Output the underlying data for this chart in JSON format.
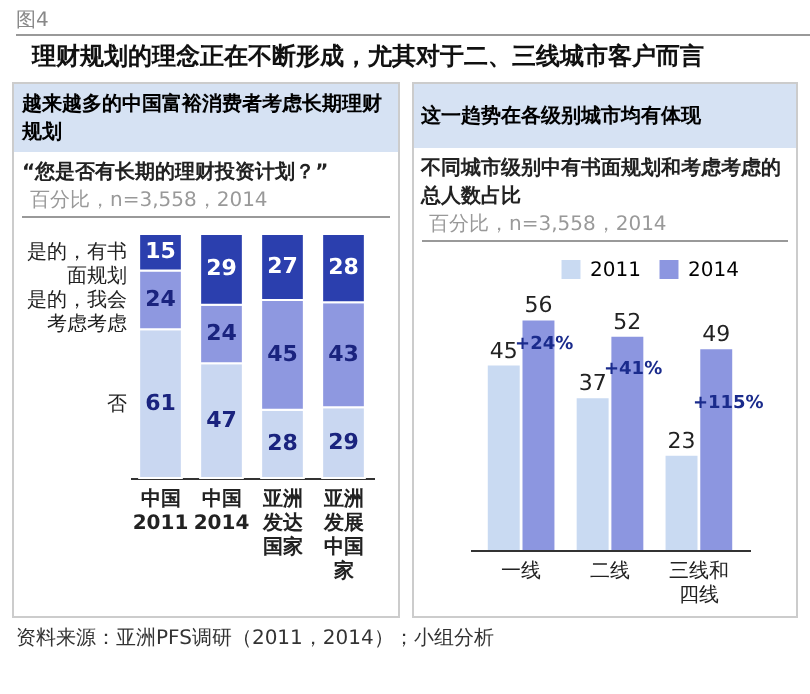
{
  "chart_data": [
    {
      "type": "bar",
      "stacked": true,
      "title": "越来越多的中国富裕消费者考虑长期理财规划",
      "subtitle": "“您是否有长期的理财投资计划？”",
      "annotations": [
        "图4",
        "理财规划的理念正在不断形成，尤其对于二、三线城市客户而言",
        "百分比，n=3,558，2014",
        "资料来源：亚洲PFS调研（2011，2014）；小组分析"
      ],
      "categories": [
        "中国2011",
        "中国2014",
        "亚洲发达国家",
        "亚洲发展中国家"
      ],
      "series": [
        {
          "name": "否",
          "color": "#c9d7f1",
          "values": [
            61,
            47,
            28,
            29
          ]
        },
        {
          "name": "是的，我会考虑考虑",
          "color": "#8e98e0",
          "values": [
            24,
            24,
            45,
            43
          ]
        },
        {
          "name": "是的，有书面规划",
          "color": "#2b3fae",
          "values": [
            15,
            29,
            27,
            28
          ]
        }
      ],
      "data_labels": true
    },
    {
      "type": "bar",
      "title": "这一趋势在各级别城市均有体现",
      "subtitle": "不同城市级别中有书面规划和考虑考虑的总人数占比",
      "annotations": [
        "百分比，n=3,558，2014",
        {
          "text": "+24%",
          "x": "一线",
          "y": 50.5
        },
        {
          "text": "+41%",
          "x": "二线",
          "y": 44.5
        },
        {
          "text": "+115%",
          "x": "三线和四线",
          "y": 36
        }
      ],
      "categories": [
        "一线",
        "二线",
        "三线和四线"
      ],
      "series": [
        {
          "name": "2011",
          "color": "#c9daf2",
          "values": [
            45,
            37,
            23
          ]
        },
        {
          "name": "2014",
          "color": "#8c96e0",
          "values": [
            56,
            52,
            49
          ]
        }
      ],
      "data_labels": true,
      "legend": "top right"
    }
  ]
}
